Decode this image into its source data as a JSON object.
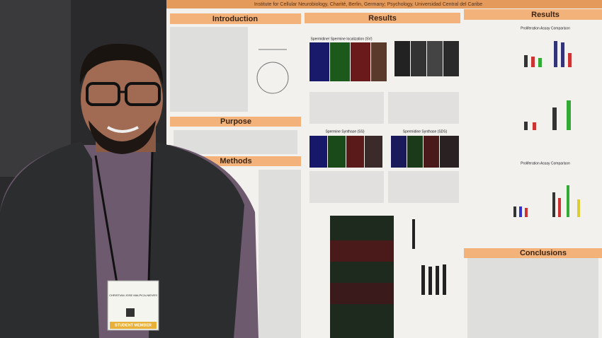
{
  "poster": {
    "header": "Institute for Cellular Neurobiology, Charité, Berlin, Germany; Psychology, Universidad Central del Caribe",
    "sections": {
      "introduction": "Introduction",
      "results_center": "Results",
      "results_right": "Results",
      "purpose": "Purpose",
      "methods": "Methods",
      "conclusions": "Conclusions"
    },
    "figures": {
      "localization": "Spermidine/ Spermine localization (SV)",
      "spermine_synthase": "Spermine Synthase (SS)",
      "spermidine_synthase": "Spermidine Synthase (SDS)",
      "proliferation_top": "Proliferation Assay Comparison",
      "proliferation_bottom": "Proliferation Assay Comparison"
    }
  },
  "badge": {
    "name": "CHRISTIAN JOSE MALPICA-NIEVES",
    "label": "STUDENT MEMBER"
  }
}
